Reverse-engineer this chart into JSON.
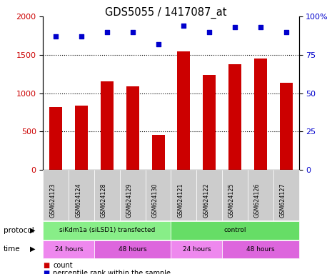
{
  "title": "GDS5055 / 1417087_at",
  "samples": [
    "GSM624123",
    "GSM624124",
    "GSM624128",
    "GSM624129",
    "GSM624130",
    "GSM624121",
    "GSM624122",
    "GSM624125",
    "GSM624126",
    "GSM624127"
  ],
  "counts": [
    820,
    840,
    1150,
    1090,
    460,
    1540,
    1240,
    1380,
    1450,
    1140
  ],
  "percentiles": [
    87,
    87,
    90,
    90,
    82,
    94,
    90,
    93,
    93,
    90
  ],
  "ylim_left": [
    0,
    2000
  ],
  "ylim_right": [
    0,
    100
  ],
  "yticks_left": [
    0,
    500,
    1000,
    1500,
    2000
  ],
  "yticks_right": [
    0,
    25,
    50,
    75,
    100
  ],
  "bar_color": "#cc0000",
  "dot_color": "#0000cc",
  "protocol_groups": [
    {
      "label": "siKdm1a (siLSD1) transfected",
      "start": 0,
      "end": 5,
      "color": "#88ee88"
    },
    {
      "label": "control",
      "start": 5,
      "end": 10,
      "color": "#66dd66"
    }
  ],
  "time_groups": [
    {
      "label": "24 hours",
      "start": 0,
      "end": 2,
      "color": "#ee88ee"
    },
    {
      "label": "48 hours",
      "start": 2,
      "end": 5,
      "color": "#dd66dd"
    },
    {
      "label": "24 hours",
      "start": 5,
      "end": 7,
      "color": "#ee88ee"
    },
    {
      "label": "48 hours",
      "start": 7,
      "end": 10,
      "color": "#dd66dd"
    }
  ],
  "legend_count_color": "#cc0000",
  "legend_dot_color": "#0000cc",
  "sample_bg_color": "#cccccc"
}
